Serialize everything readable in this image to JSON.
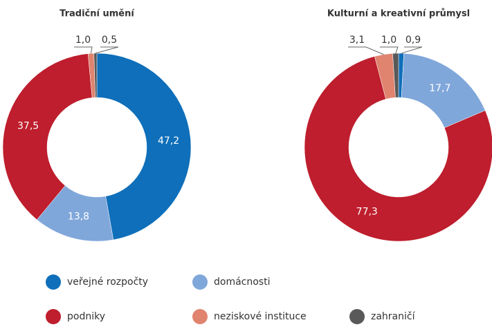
{
  "legend": {
    "categories": [
      "veřejné rozpočty",
      "domácnosti",
      "podniky",
      "neziskové instituce",
      "zahraničí"
    ],
    "colors": [
      "#0f6fba",
      "#80a7da",
      "#be1e2d",
      "#e0846f",
      "#595959"
    ]
  },
  "chart_data": [
    {
      "type": "pie",
      "title": "Tradiční umění",
      "values": [
        47.2,
        13.8,
        37.5,
        1.0,
        0.5
      ],
      "value_labels": [
        "47,2",
        "13,8",
        "37,5",
        "1,0",
        "0,5"
      ]
    },
    {
      "type": "pie",
      "title": "Kulturní a kreativní průmysl",
      "values": [
        0.9,
        17.7,
        77.3,
        3.1,
        1.0
      ],
      "value_labels": [
        "0,9",
        "17,7",
        "77,3",
        "3,1",
        "1,0"
      ]
    }
  ]
}
